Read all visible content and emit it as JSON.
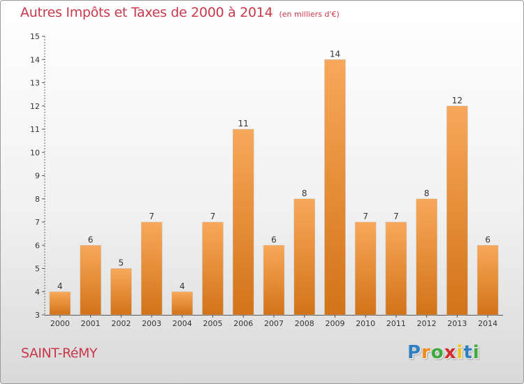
{
  "header": {
    "title": "Autres Impôts et Taxes de 2000 à 2014",
    "subtitle": "(en milliers d'€)"
  },
  "footer": {
    "place": "SAINT-RéMY",
    "logo_letters": [
      {
        "char": "P",
        "color": "#2f7fc1"
      },
      {
        "char": "r",
        "color": "#f08a1c"
      },
      {
        "char": "o",
        "color": "#3cab3c"
      },
      {
        "char": "x",
        "color": "#d62b2b"
      },
      {
        "char": "i",
        "color": "#f0c419"
      },
      {
        "char": "t",
        "color": "#2f7fc1"
      },
      {
        "char": "i",
        "color": "#3cab3c"
      }
    ]
  },
  "colors": {
    "bar_top": "#f8a85a",
    "bar_bottom": "#d27318",
    "text_accent": "#c8384b"
  },
  "chart_data": {
    "type": "bar",
    "categories": [
      "2000",
      "2001",
      "2002",
      "2003",
      "2004",
      "2005",
      "2006",
      "2007",
      "2008",
      "2009",
      "2010",
      "2011",
      "2012",
      "2013",
      "2014"
    ],
    "values": [
      4,
      6,
      5,
      7,
      4,
      7,
      11,
      6,
      8,
      14,
      7,
      7,
      8,
      12,
      6
    ],
    "ylim": [
      3,
      15
    ],
    "yticks": [
      3,
      4,
      5,
      6,
      7,
      8,
      9,
      10,
      11,
      12,
      13,
      14,
      15
    ],
    "grid": false,
    "legend": "none"
  }
}
